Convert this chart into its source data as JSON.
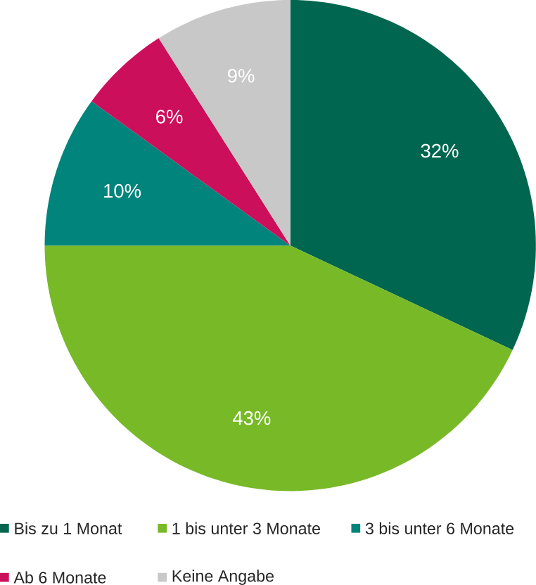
{
  "chart_data": {
    "type": "pie",
    "categories": [
      "Bis zu 1 Monat",
      "1 bis unter 3 Monate",
      "3 bis unter 6 Monate",
      "Ab 6 Monate",
      "Keine Angabe"
    ],
    "values": [
      32,
      43,
      10,
      6,
      9
    ],
    "value_labels": [
      "32%",
      "43%",
      "10%",
      "6%",
      "9%"
    ],
    "colors": [
      "#00664f",
      "#78b928",
      "#00847b",
      "#cc0f5b",
      "#c8c8c8"
    ],
    "legend": "bottom"
  }
}
